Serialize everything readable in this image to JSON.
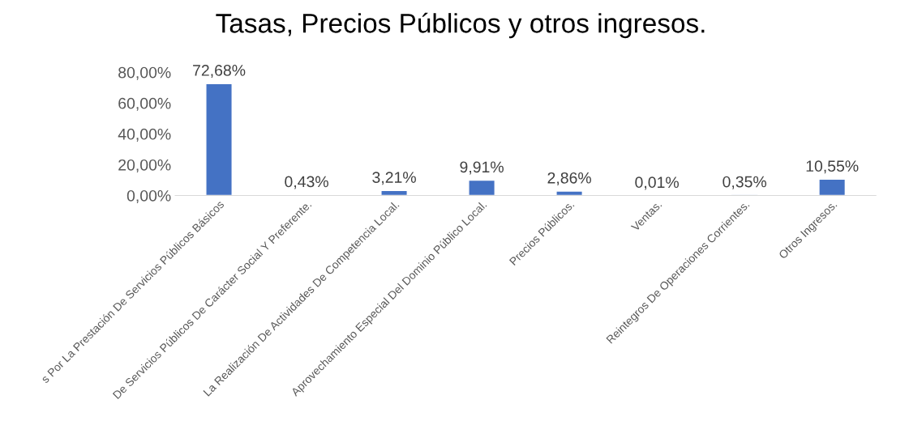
{
  "chart_data": {
    "type": "bar",
    "title": "Tasas, Precios Públicos y otros ingresos.",
    "categories": [
      "s Por La Prestación De Servicios Públicos Básicos",
      "De Servicios Públicos De Carácter Social Y Preferente.",
      "La Realización De Actividades De Competencia Local.",
      "Aprovechamiento Especial Del Dominio Público Local.",
      "Precios Públicos.",
      "Ventas.",
      "Reintegros De Operaciones Corrientes.",
      "Otros Ingresos."
    ],
    "values": [
      72.68,
      0.43,
      3.21,
      9.91,
      2.86,
      0.01,
      0.35,
      10.55
    ],
    "value_labels": [
      "72,68%",
      "0,43%",
      "3,21%",
      "9,91%",
      "2,86%",
      "0,01%",
      "0,35%",
      "10,55%"
    ],
    "color": "#4472c4",
    "ylim": [
      0,
      80
    ],
    "yticks": [
      {
        "value": 0,
        "label": "0,00%"
      },
      {
        "value": 20,
        "label": "20,00%"
      },
      {
        "value": 40,
        "label": "40,00%"
      },
      {
        "value": 60,
        "label": "60,00%"
      },
      {
        "value": 80,
        "label": "80,00%"
      }
    ],
    "grid": false,
    "legend": false
  }
}
